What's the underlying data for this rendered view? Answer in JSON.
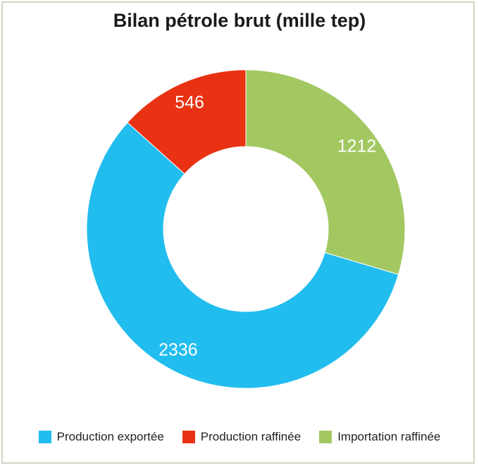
{
  "chart_data": {
    "type": "pie",
    "variant": "donut",
    "title": "Bilan pétrole brut (mille tep)",
    "legend_position": "bottom",
    "slices": [
      {
        "name": "Importation raffinée",
        "value": 1212,
        "label": "1212",
        "color": "#a3c862"
      },
      {
        "name": "Production exportée",
        "value": 2336,
        "label": "2336",
        "color": "#21bdee"
      },
      {
        "name": "Production raffinée",
        "value": 546,
        "label": "546",
        "color": "#e83213"
      }
    ],
    "legend": [
      {
        "name": "Production exportée",
        "color": "#21bdee"
      },
      {
        "name": "Production raffinée",
        "color": "#e83213"
      },
      {
        "name": "Importation raffinée",
        "color": "#a3c862"
      }
    ]
  }
}
